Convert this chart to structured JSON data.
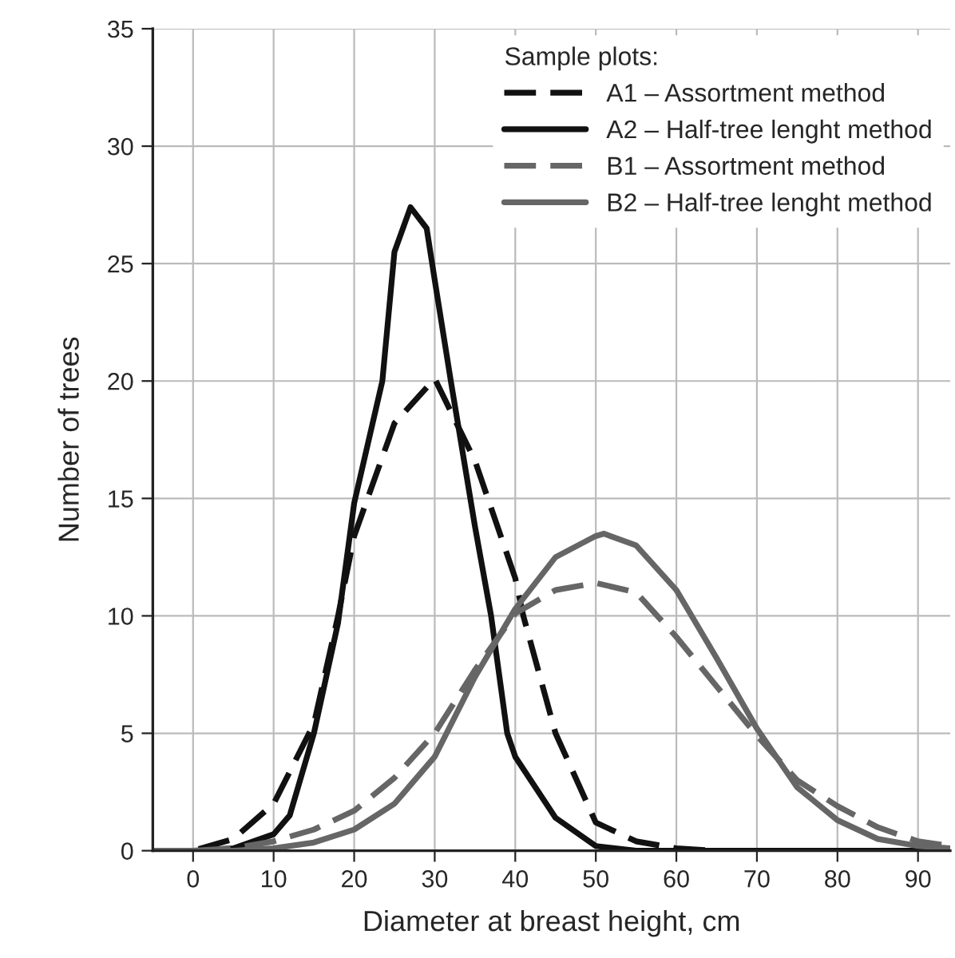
{
  "chart_data": {
    "type": "line",
    "xlabel": "Diameter at breast height, cm",
    "ylabel": "Number of trees",
    "legend_title": "Sample plots:",
    "xlim": [
      -5,
      94
    ],
    "xticks": [
      0,
      10,
      20,
      30,
      40,
      50,
      60,
      70,
      80,
      90
    ],
    "ylim": [
      0,
      35
    ],
    "yticks": [
      0,
      5,
      10,
      15,
      20,
      25,
      30,
      35
    ],
    "grid": true,
    "legend": "top right",
    "marker": "none",
    "series": [
      {
        "name": "A1 – Assortment method",
        "color": "#111111",
        "line_style": "dashed",
        "x": [
          -5,
          0,
          5,
          10,
          15,
          18,
          20,
          25,
          30,
          35,
          40,
          41,
          45,
          50,
          55,
          60,
          65,
          70,
          80,
          94
        ],
        "values": [
          0,
          0,
          0.5,
          2,
          5.4,
          10,
          13.4,
          18.2,
          20.1,
          16.6,
          11.6,
          10,
          5,
          1.2,
          0.4,
          0.1,
          0,
          0,
          0,
          0
        ]
      },
      {
        "name": "A2 – Half-tree lenght method",
        "color": "#111111",
        "line_style": "solid",
        "x": [
          -5,
          0,
          5,
          10,
          12,
          15,
          18,
          20,
          23.5,
          25,
          27,
          29,
          30,
          32,
          35,
          37,
          39,
          40,
          45,
          50,
          55,
          70,
          94
        ],
        "values": [
          0,
          0,
          0.1,
          0.7,
          1.5,
          5,
          9.7,
          14.8,
          20,
          25.5,
          27.4,
          26.5,
          24.3,
          20,
          13.8,
          10,
          5,
          4,
          1.4,
          0.2,
          0,
          0,
          0
        ]
      },
      {
        "name": "B1 – Assortment method",
        "color": "#666666",
        "line_style": "dashed",
        "x": [
          -5,
          0,
          5,
          10,
          15,
          20,
          25,
          30,
          35,
          40,
          45,
          50,
          55,
          60,
          65,
          70,
          75,
          80,
          85,
          90,
          94
        ],
        "values": [
          0,
          0,
          0.1,
          0.4,
          0.9,
          1.7,
          3.1,
          5,
          7.7,
          10.1,
          11.1,
          11.4,
          11,
          9.1,
          7,
          4.9,
          3,
          1.9,
          1,
          0.4,
          0.2
        ]
      },
      {
        "name": "B2 – Half-tree lenght method",
        "color": "#666666",
        "line_style": "solid",
        "x": [
          -5,
          0,
          5,
          10,
          15,
          20,
          25,
          30,
          35,
          40,
          45,
          50,
          51,
          55,
          60,
          65,
          70,
          75,
          80,
          85,
          90,
          94
        ],
        "values": [
          0,
          0,
          0,
          0.1,
          0.35,
          0.9,
          2,
          4,
          7.4,
          10.3,
          12.5,
          13.4,
          13.5,
          13,
          11.1,
          8.2,
          5.2,
          2.7,
          1.3,
          0.5,
          0.2,
          0.1
        ]
      }
    ]
  }
}
